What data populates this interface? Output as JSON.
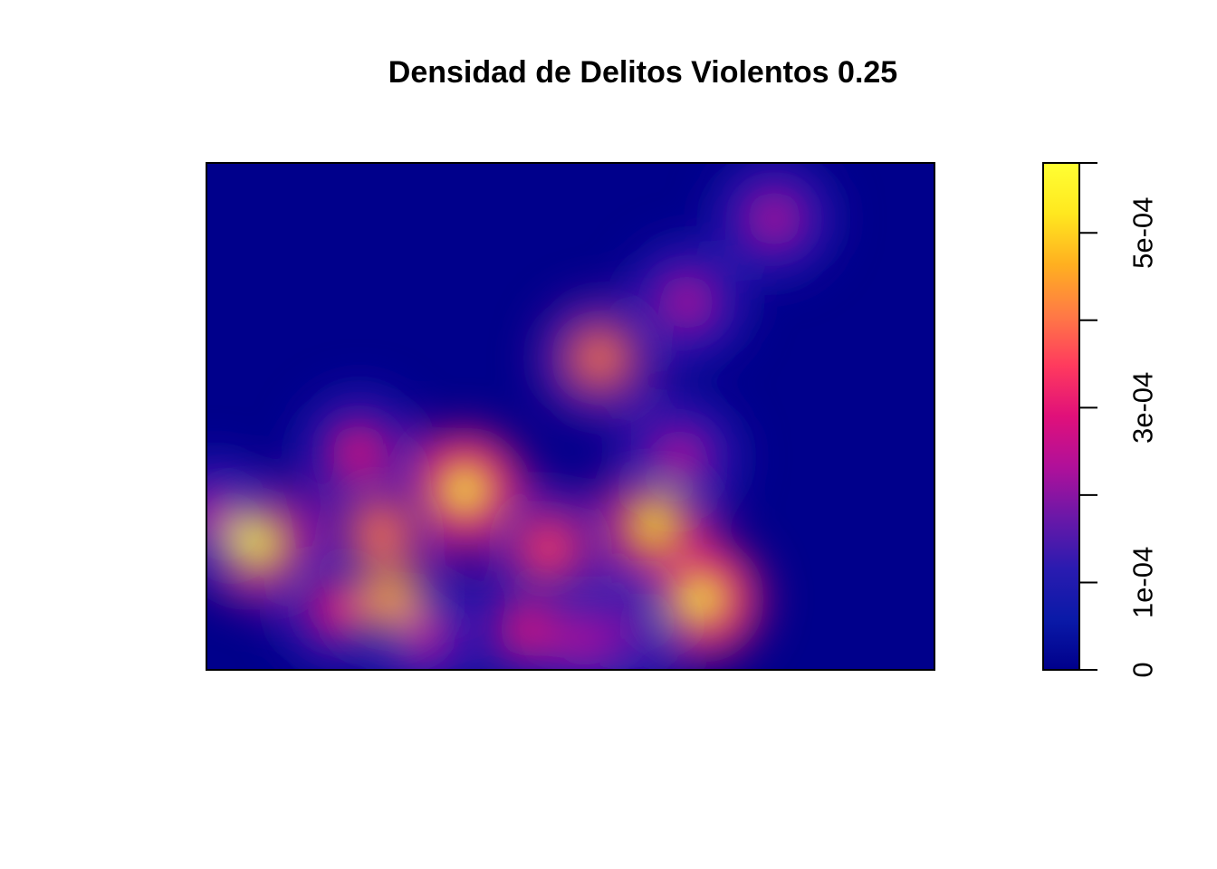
{
  "chart_data": {
    "type": "heatmap",
    "title": "Densidad de Delitos Violentos 0.25",
    "xlabel": "",
    "ylabel": "",
    "axes_visible": false,
    "x_domain": [
      0,
      1
    ],
    "y_domain": [
      0,
      1
    ],
    "grid": false,
    "colorbar": {
      "position": "right",
      "range": [
        0,
        0.00058
      ],
      "ticks": [
        {
          "value": 0,
          "label": "0"
        },
        {
          "value": 0.0001,
          "label": "1e-04"
        },
        {
          "value": 0.0002,
          "label": ""
        },
        {
          "value": 0.0003,
          "label": "3e-04"
        },
        {
          "value": 0.0004,
          "label": ""
        },
        {
          "value": 0.0005,
          "label": "5e-04"
        },
        {
          "value": 0.00058,
          "label": ""
        }
      ],
      "palette": [
        "#00008B",
        "#0A1AA8",
        "#2A1BB0",
        "#6A18A8",
        "#B0109A",
        "#E0107A",
        "#FF3A5E",
        "#FF7A45",
        "#FFB020",
        "#FFE81F",
        "#FFFF33"
      ]
    },
    "background_value": 1e-05,
    "hotspots": [
      {
        "x": 0.07,
        "y": 0.25,
        "value": 0.00056
      },
      {
        "x": 0.355,
        "y": 0.355,
        "value": 0.00058
      },
      {
        "x": 0.615,
        "y": 0.285,
        "value": 0.00055
      },
      {
        "x": 0.68,
        "y": 0.14,
        "value": 0.00058
      },
      {
        "x": 0.54,
        "y": 0.615,
        "value": 0.00042
      },
      {
        "x": 0.66,
        "y": 0.725,
        "value": 0.00026
      },
      {
        "x": 0.78,
        "y": 0.89,
        "value": 0.00022
      },
      {
        "x": 0.21,
        "y": 0.43,
        "value": 0.0003
      },
      {
        "x": 0.24,
        "y": 0.27,
        "value": 0.00038
      },
      {
        "x": 0.255,
        "y": 0.14,
        "value": 0.00045
      },
      {
        "x": 0.47,
        "y": 0.24,
        "value": 0.00036
      },
      {
        "x": 0.18,
        "y": 0.12,
        "value": 0.0003
      },
      {
        "x": 0.44,
        "y": 0.08,
        "value": 0.0003
      },
      {
        "x": 0.65,
        "y": 0.42,
        "value": 0.00024
      },
      {
        "x": 0.3,
        "y": 0.07,
        "value": 0.00024
      },
      {
        "x": 0.52,
        "y": 0.06,
        "value": 0.00022
      },
      {
        "x": 0.01,
        "y": 0.3,
        "value": 0.00025
      },
      {
        "x": 0.58,
        "y": 0.08,
        "value": 0.0002
      }
    ]
  }
}
